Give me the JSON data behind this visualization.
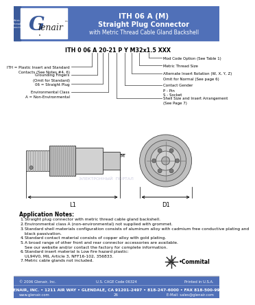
{
  "title_line1": "ITH 06 A (M)",
  "title_line2": "Straight Plug Connector",
  "title_line3": "with Metric Thread Cable Gland Backshell",
  "header_bg": "#5070b8",
  "header_text_color": "#ffffff",
  "logo_bg": "#ffffff",
  "sidebar_bg": "#5070b8",
  "part_number_label": "ITH 0 06 A 20-21 P Y M32x1.5 XXX",
  "callout_left": [
    "ITH = Plastic Insert and Standard\nContacts (See Notes #4, 6)",
    "Grounding Fingers\n(Omit for Standard)",
    "06 = Straight Plug",
    "Environmental Class\nA = Non-Environmental"
  ],
  "callout_right": [
    "Mod Code Option (See Table 1)",
    "Metric Thread Size",
    "Alternate Insert Rotation (W, X, Y, Z)\nOmit for Normal (See page 6)",
    "Contact Gender\nP - Pin\nS - Socket",
    "Shell Size and Insert Arrangement\n(See Page 7)"
  ],
  "app_notes_title": "Application Notes:",
  "app_notes": [
    "Straight plug connector with metric thread cable gland backshell.",
    "Environmental class A (non-environmental) not supplied with grommet.",
    "Standard shell materials configuration consists of aluminum alloy with cadmium free conductive plating and\nblack passivation.",
    "Standard contact material consists of copper alloy with gold plating.",
    "A broad range of other front and rear connector accessories are available.\nSee our website and/or contact the factory for complete information.",
    "Standard insert material is Low fire hazard plastic:\nUL94V0, MIL Article 3, NFF16-102, 356833.",
    "Metric cable glands not included."
  ],
  "footer_copy": "© 2006 Glenair, Inc.",
  "footer_cage": "U.S. CAGE Code 06324",
  "footer_printed": "Printed in U.S.A.",
  "footer_addr": "GLENAIR, INC. • 1211 AIR WAY • GLENDALE, CA 91201-2497 • 818-247-6000 • FAX 818-500-9912",
  "footer_web": "www.glenair.com",
  "footer_page": "26",
  "footer_email": "E-Mail: sales@glenair.com",
  "footer_bg": "#5070b8",
  "footer_text_color": "#ffffff",
  "page_bg": "#ffffff",
  "dim_L1": "L1",
  "dim_D1": "D1",
  "dim_M": "M"
}
